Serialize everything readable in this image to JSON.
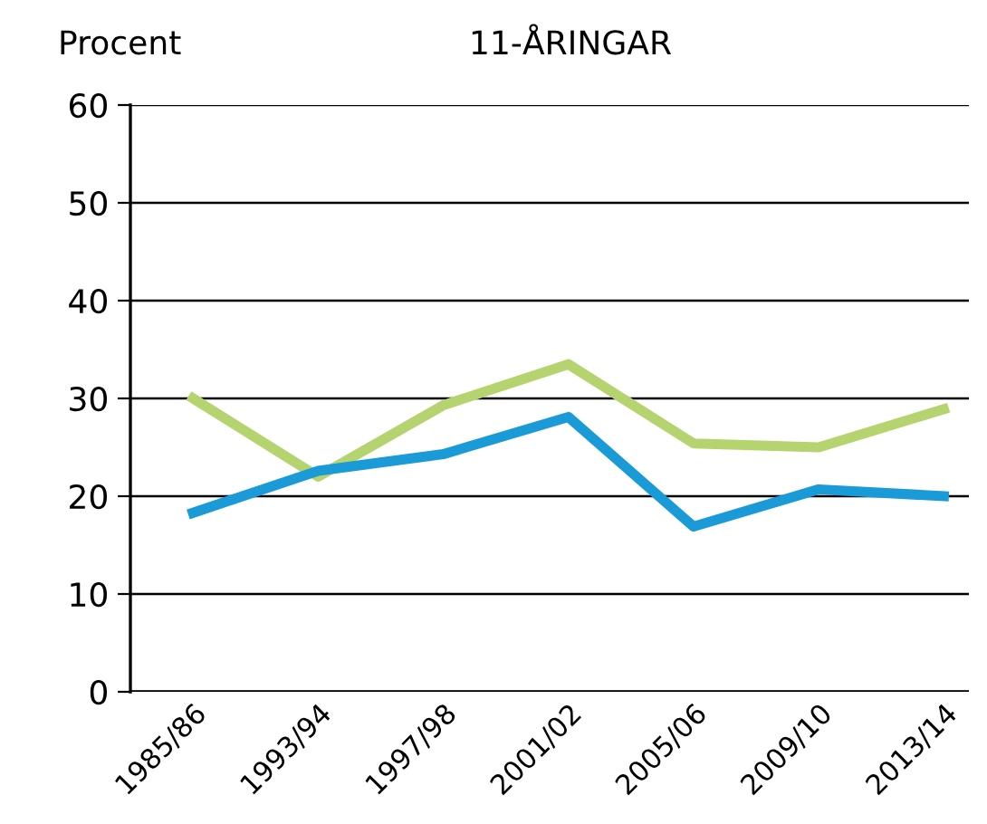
{
  "chart_data": {
    "type": "line",
    "title": "11-ÅRINGAR",
    "ylabel": "Procent",
    "categories": [
      "1985/86",
      "1993/94",
      "1997/98",
      "2001/02",
      "2005/06",
      "2009/10",
      "2013/14"
    ],
    "series": [
      {
        "color": "#b5d36f",
        "values": [
          30.0,
          22.0,
          29.3,
          33.5,
          25.4,
          25.0,
          28.9
        ]
      },
      {
        "color": "#1a9ad6",
        "values": [
          18.3,
          22.6,
          24.3,
          28.1,
          16.9,
          20.7,
          20.0
        ]
      }
    ],
    "ylim": [
      0,
      60
    ],
    "yticks": [
      0,
      10,
      20,
      30,
      40,
      50,
      60
    ],
    "grid": "y",
    "marker": "none",
    "line_style": "solid",
    "legend": false
  }
}
